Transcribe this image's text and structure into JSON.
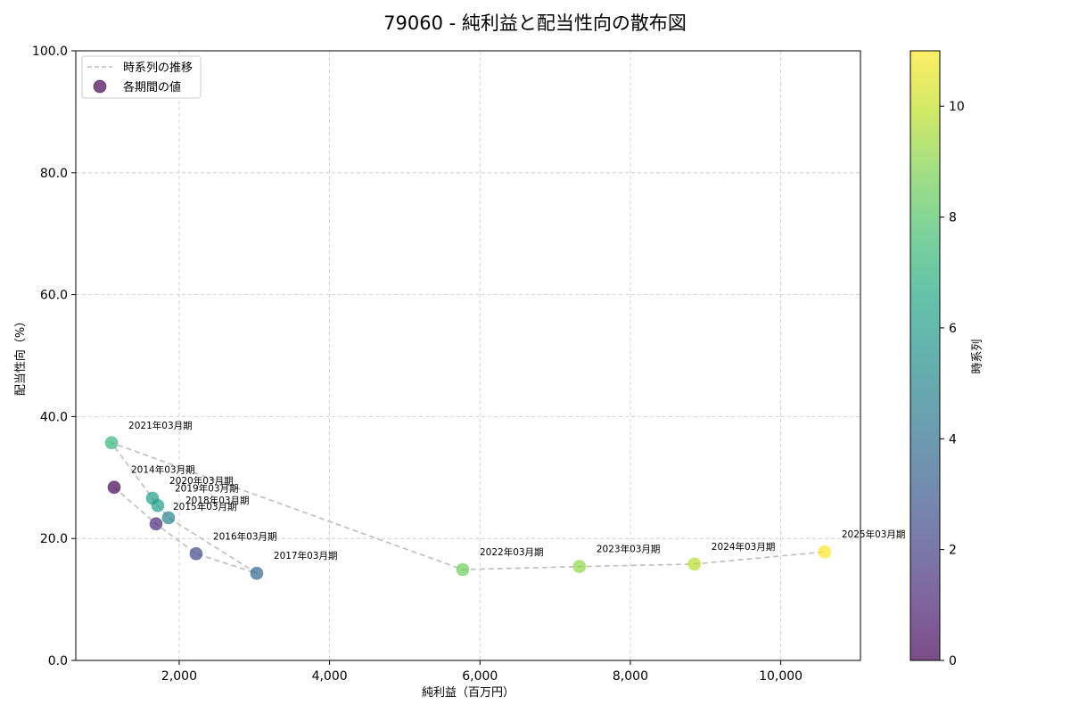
{
  "chart_data": {
    "type": "scatter",
    "title": "79060 - 純利益と配当性向の散布図",
    "xlabel": "純利益（百万円）",
    "ylabel": "配当性向（%）",
    "xlim": [
      625,
      11060
    ],
    "ylim": [
      0,
      100
    ],
    "xticks": [
      2000,
      4000,
      6000,
      8000,
      10000
    ],
    "xtick_labels": [
      "2,000",
      "4,000",
      "6,000",
      "8,000",
      "10,000"
    ],
    "yticks": [
      0,
      20,
      40,
      60,
      80,
      100
    ],
    "ytick_labels": [
      "0.0",
      "20.0",
      "40.0",
      "60.0",
      "80.0",
      "100.0"
    ],
    "grid": true,
    "legend": {
      "position": "upper left",
      "entries": [
        {
          "label": "時系列の推移",
          "type": "dashed-line",
          "color": "#bdbdbd"
        },
        {
          "label": "各期間の値",
          "type": "marker",
          "color": "#440154"
        }
      ]
    },
    "colorbar": {
      "label": "時系列",
      "cmap": "viridis",
      "range": [
        0,
        11
      ],
      "ticks": [
        0,
        2,
        4,
        6,
        8,
        10
      ],
      "tick_labels": [
        "0",
        "2",
        "4",
        "6",
        "8",
        "10"
      ]
    },
    "points": [
      {
        "label": "2014年03月期",
        "x": 1135,
        "y": 28.4,
        "t": 0,
        "color": "#440154"
      },
      {
        "label": "2015年03月期",
        "x": 1692,
        "y": 22.4,
        "t": 1,
        "color": "#482878"
      },
      {
        "label": "2016年03月期",
        "x": 2225,
        "y": 17.5,
        "t": 2,
        "color": "#3e4989"
      },
      {
        "label": "2017年03月期",
        "x": 3031,
        "y": 14.3,
        "t": 3,
        "color": "#31688e"
      },
      {
        "label": "2018年03月期",
        "x": 1858,
        "y": 23.4,
        "t": 4,
        "color": "#26828e"
      },
      {
        "label": "2019年03月期",
        "x": 1716,
        "y": 25.4,
        "t": 5,
        "color": "#1f9e89"
      },
      {
        "label": "2020年03月期",
        "x": 1645,
        "y": 26.6,
        "t": 6,
        "color": "#1f9e89"
      },
      {
        "label": "2021年03月期",
        "x": 1100,
        "y": 35.7,
        "t": 7,
        "color": "#35b779"
      },
      {
        "label": "2022年03月期",
        "x": 5771,
        "y": 14.9,
        "t": 8,
        "color": "#6ece58"
      },
      {
        "label": "2023年03月期",
        "x": 7323,
        "y": 15.4,
        "t": 9,
        "color": "#8fd744"
      },
      {
        "label": "2024年03月期",
        "x": 8852,
        "y": 15.8,
        "t": 10,
        "color": "#b5de2b"
      },
      {
        "label": "2025年03月期",
        "x": 10584,
        "y": 17.8,
        "t": 11,
        "color": "#fde725"
      }
    ]
  }
}
